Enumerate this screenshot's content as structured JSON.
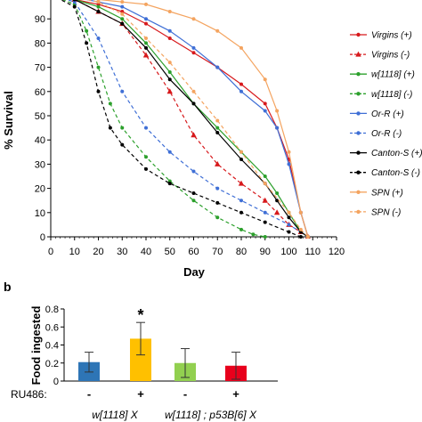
{
  "chart_data": [
    {
      "type": "line",
      "title": "",
      "xlabel": "Day",
      "ylabel": "% Survival",
      "xlim": [
        0,
        120
      ],
      "ylim": [
        0,
        100
      ],
      "xticks": [
        "0",
        "10",
        "20",
        "30",
        "40",
        "50",
        "60",
        "70",
        "80",
        "90",
        "100",
        "110",
        "120"
      ],
      "yticks": [
        "0",
        "10",
        "20",
        "30",
        "40",
        "50",
        "60",
        "70",
        "80",
        "90"
      ],
      "grid": false,
      "legend_position": "right",
      "series": [
        {
          "name": "Virgins (+)",
          "color": "#d7191c",
          "style": "solid",
          "marker": "dot",
          "x": [
            0,
            10,
            20,
            30,
            40,
            50,
            60,
            70,
            80,
            90,
            95,
            100,
            105,
            108
          ],
          "y": [
            100,
            98,
            96,
            93,
            88,
            82,
            76,
            70,
            63,
            55,
            45,
            32,
            10,
            0
          ]
        },
        {
          "name": "Virgins (-)",
          "color": "#d7191c",
          "style": "dashed",
          "marker": "triangle",
          "x": [
            0,
            10,
            20,
            30,
            40,
            50,
            60,
            70,
            80,
            90,
            95,
            100,
            105,
            108
          ],
          "y": [
            100,
            98,
            93,
            88,
            75,
            60,
            42,
            30,
            22,
            15,
            10,
            5,
            2,
            0
          ]
        },
        {
          "name": "w[1118] (+)",
          "color": "#2ca02c",
          "style": "solid",
          "marker": "dot",
          "x": [
            0,
            10,
            20,
            30,
            40,
            50,
            60,
            70,
            80,
            90,
            95,
            100,
            105,
            108
          ],
          "y": [
            100,
            98,
            95,
            90,
            80,
            68,
            55,
            45,
            35,
            25,
            18,
            10,
            2,
            0
          ]
        },
        {
          "name": "w[1118] (-)",
          "color": "#2ca02c",
          "style": "dashed",
          "marker": "dot",
          "x": [
            0,
            10,
            15,
            20,
            25,
            30,
            40,
            50,
            60,
            70,
            80,
            85,
            90
          ],
          "y": [
            100,
            96,
            85,
            70,
            55,
            45,
            33,
            23,
            15,
            8,
            3,
            1,
            0
          ]
        },
        {
          "name": "Or-R (+)",
          "color": "#3f6fd6",
          "style": "solid",
          "marker": "dot",
          "x": [
            0,
            10,
            20,
            30,
            40,
            50,
            60,
            70,
            80,
            90,
            95,
            100,
            105,
            108
          ],
          "y": [
            100,
            99,
            97,
            95,
            90,
            85,
            78,
            70,
            60,
            52,
            45,
            30,
            10,
            0
          ]
        },
        {
          "name": "Or-R (-)",
          "color": "#3f6fd6",
          "style": "dashed",
          "marker": "dot",
          "x": [
            0,
            10,
            20,
            30,
            40,
            50,
            60,
            70,
            80,
            90,
            100,
            105,
            108
          ],
          "y": [
            100,
            97,
            82,
            60,
            45,
            35,
            27,
            20,
            15,
            10,
            5,
            2,
            0
          ]
        },
        {
          "name": "Canton-S (+)",
          "color": "#000000",
          "style": "solid",
          "marker": "dot",
          "x": [
            0,
            10,
            20,
            30,
            40,
            50,
            60,
            70,
            80,
            90,
            95,
            100,
            105,
            108
          ],
          "y": [
            100,
            98,
            93,
            88,
            78,
            65,
            55,
            43,
            32,
            22,
            15,
            8,
            2,
            0
          ]
        },
        {
          "name": "Canton-S (-)",
          "color": "#000000",
          "style": "dashed",
          "marker": "dot",
          "x": [
            0,
            10,
            15,
            20,
            25,
            30,
            40,
            50,
            60,
            70,
            80,
            90,
            100,
            105
          ],
          "y": [
            100,
            95,
            80,
            60,
            45,
            38,
            28,
            22,
            18,
            14,
            10,
            6,
            2,
            0
          ]
        },
        {
          "name": "SPN (+)",
          "color": "#f4a460",
          "style": "solid",
          "marker": "dot",
          "x": [
            0,
            10,
            20,
            30,
            40,
            50,
            60,
            70,
            80,
            90,
            95,
            100,
            105,
            108
          ],
          "y": [
            100,
            99,
            98,
            97,
            96,
            93,
            90,
            85,
            78,
            65,
            52,
            35,
            10,
            0
          ]
        },
        {
          "name": "SPN (-)",
          "color": "#f4a460",
          "style": "dashed",
          "marker": "dot",
          "x": [
            0,
            10,
            20,
            30,
            40,
            50,
            60,
            70,
            80,
            90,
            100,
            105,
            108
          ],
          "y": [
            100,
            99,
            97,
            92,
            82,
            72,
            60,
            48,
            35,
            22,
            10,
            3,
            0
          ]
        }
      ]
    },
    {
      "type": "bar",
      "panel_label": "b",
      "title": "",
      "xlabel": "",
      "ylabel": "Food ingested",
      "ylim": [
        0,
        0.8
      ],
      "yticks": [
        "0",
        "0.2",
        "0.4",
        "0.6",
        "0.8"
      ],
      "factor_label": "RU486:",
      "categories": [
        "-",
        "+",
        "-",
        "+"
      ],
      "values": [
        0.21,
        0.47,
        0.2,
        0.17
      ],
      "errors": [
        0.11,
        0.18,
        0.16,
        0.15
      ],
      "colors": [
        "#2e75b6",
        "#ffc000",
        "#92d050",
        "#e8001c"
      ],
      "significance": [
        "",
        "*",
        "",
        ""
      ],
      "groups": [
        {
          "label": "w[1118] X",
          "span": [
            0,
            1
          ]
        },
        {
          "label": "w[1118] ; p53B[6] X",
          "span": [
            2,
            3
          ]
        }
      ]
    }
  ]
}
